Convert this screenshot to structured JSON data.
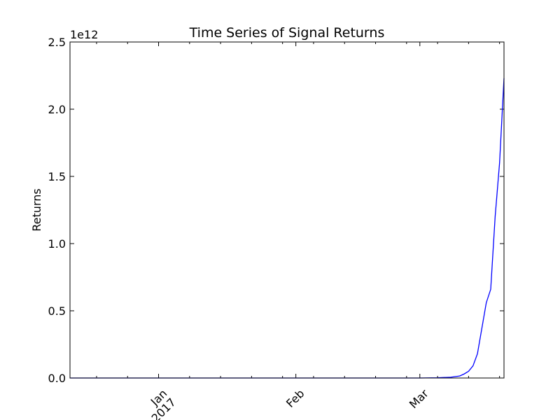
{
  "chart_data": {
    "type": "line",
    "title": "Time Series of Signal Returns",
    "xlabel": "",
    "ylabel": "Returns",
    "y_offset_label": "1e12",
    "y_scale": 1000000000000,
    "ylim": [
      0,
      2.5
    ],
    "xlim": [
      "2016-12-12",
      "2017-03-20"
    ],
    "yticks": [
      {
        "value": 0.0,
        "label": "0.0"
      },
      {
        "value": 0.5,
        "label": "0.5"
      },
      {
        "value": 1.0,
        "label": "1.0"
      },
      {
        "value": 1.5,
        "label": "1.5"
      },
      {
        "value": 2.0,
        "label": "2.0"
      },
      {
        "value": 2.5,
        "label": "2.5"
      }
    ],
    "xticks": [
      {
        "date": "2017-01-01",
        "label": "Jan",
        "label2": "2017"
      },
      {
        "date": "2017-02-01",
        "label": "Feb",
        "label2": ""
      },
      {
        "date": "2017-03-01",
        "label": "Mar",
        "label2": ""
      }
    ],
    "line_color": "#0000ff",
    "grid": false,
    "series": [
      {
        "x": [
          "2016-12-12",
          "2016-12-20",
          "2017-01-01",
          "2017-01-15",
          "2017-02-01",
          "2017-02-15",
          "2017-02-25",
          "2017-03-01",
          "2017-03-05",
          "2017-03-08",
          "2017-03-10",
          "2017-03-11",
          "2017-03-12",
          "2017-03-13",
          "2017-03-14",
          "2017-03-15",
          "2017-03-16",
          "2017-03-17",
          "2017-03-18",
          "2017-03-19",
          "2017-03-20"
        ],
        "values": [
          0.0,
          0.0,
          0.0,
          0.0,
          0.0,
          0.0,
          0.0,
          0.0,
          0.002,
          0.006,
          0.015,
          0.03,
          0.05,
          0.09,
          0.18,
          0.37,
          0.56,
          0.66,
          1.2,
          1.6,
          2.23
        ]
      }
    ]
  }
}
